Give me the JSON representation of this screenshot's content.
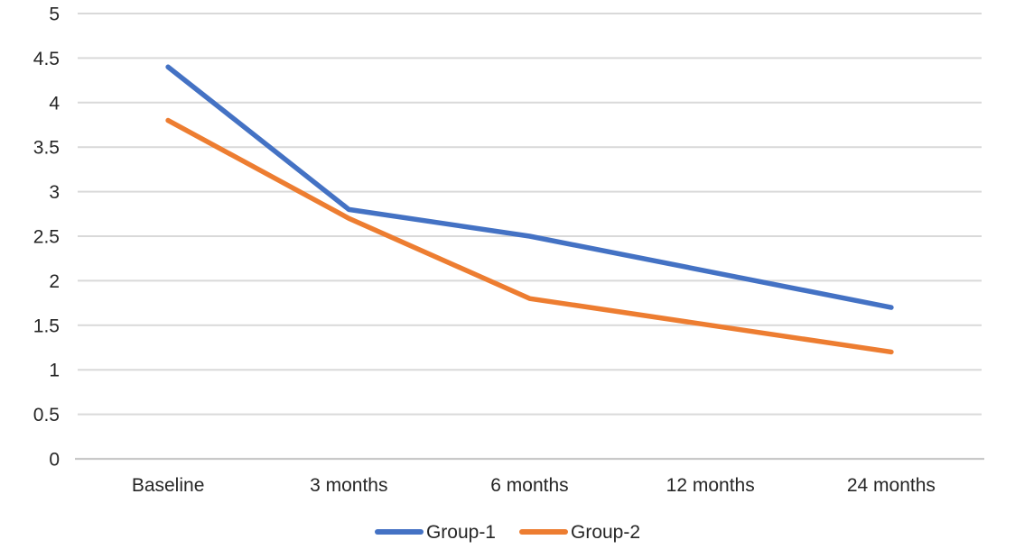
{
  "chart_data": {
    "type": "line",
    "title": "",
    "xlabel": "",
    "ylabel": "",
    "categories": [
      "Baseline",
      "3 months",
      "6 months",
      "12 months",
      "24 months"
    ],
    "series": [
      {
        "name": "Group-1",
        "values": [
          4.4,
          2.8,
          2.5,
          2.1,
          1.7
        ],
        "color": "#4472C4"
      },
      {
        "name": "Group-2",
        "values": [
          3.8,
          2.7,
          1.8,
          1.5,
          1.2
        ],
        "color": "#ED7D31"
      }
    ],
    "ylim": [
      0,
      5
    ],
    "ytick_step": 0.5,
    "ytick_labels": [
      "0",
      "0.5",
      "1",
      "1.5",
      "2",
      "2.5",
      "3",
      "3.5",
      "4",
      "4.5",
      "5"
    ],
    "grid": true,
    "legend_position": "bottom",
    "colors": {
      "gridline": "#D9D9D9",
      "axis_line": "#C9C9C9",
      "text": "#262626",
      "background": "#FFFFFF"
    }
  }
}
